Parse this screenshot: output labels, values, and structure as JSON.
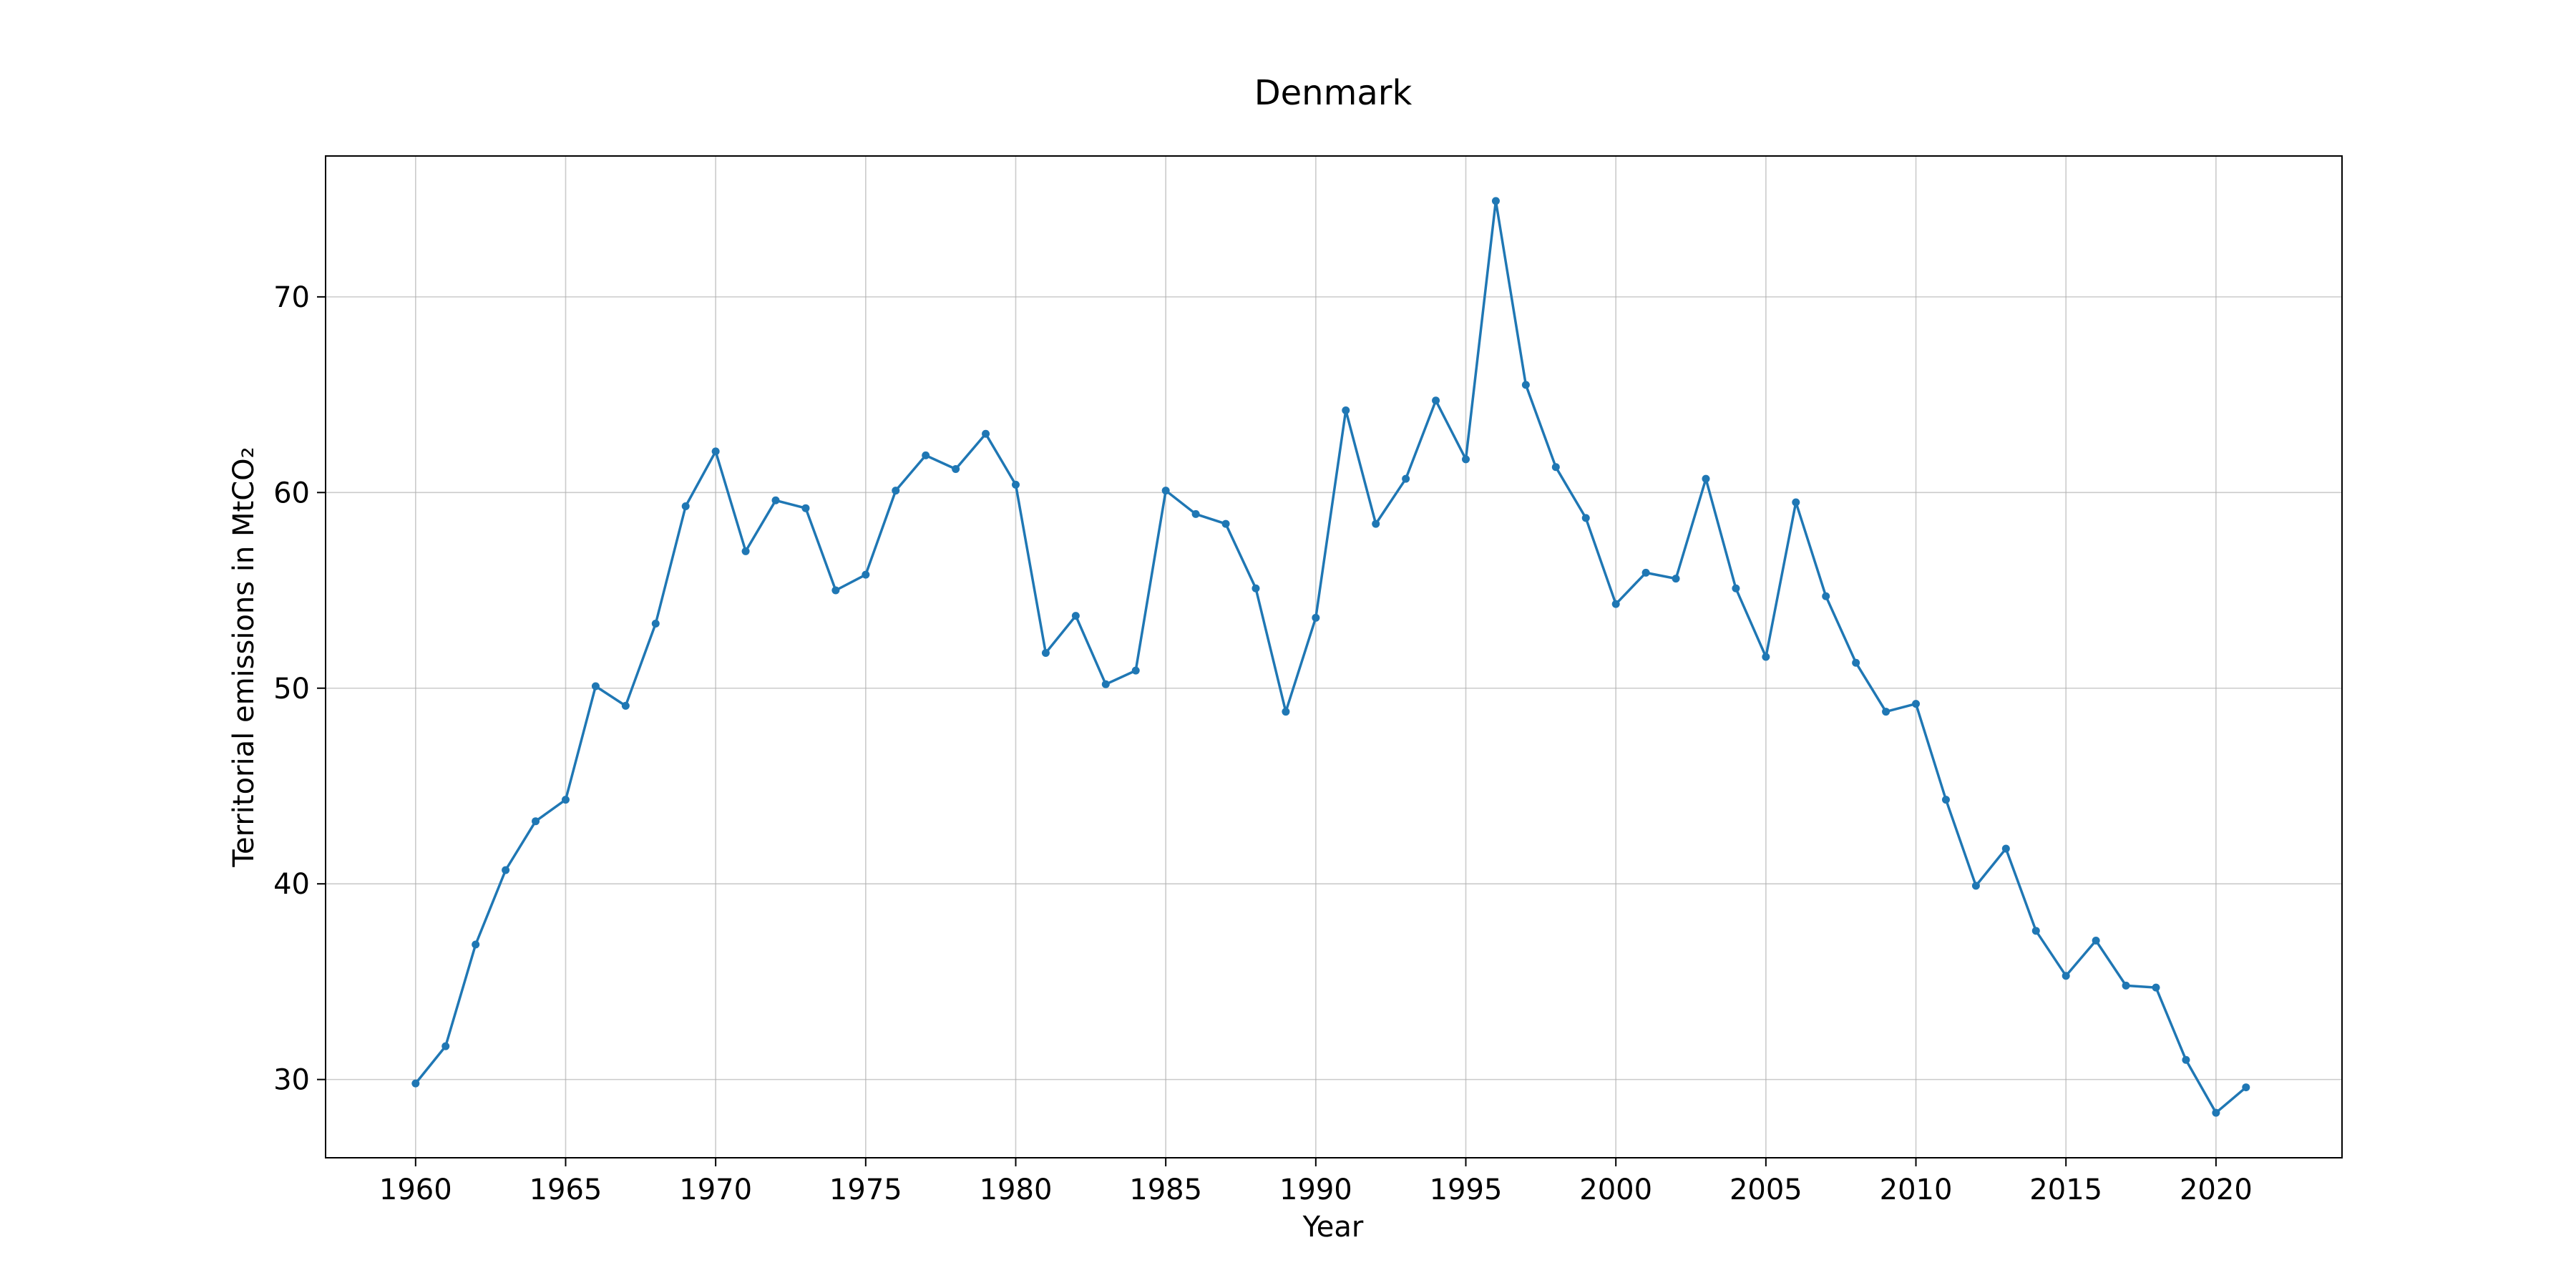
{
  "chart_data": {
    "type": "line",
    "title": "Denmark",
    "xlabel": "Year",
    "ylabel": "Territorial emissions in MtCO₂",
    "xlim": [
      1957,
      2024.2
    ],
    "ylim": [
      26,
      77.2
    ],
    "xticks": [
      1960,
      1965,
      1970,
      1975,
      1980,
      1985,
      1990,
      1995,
      2000,
      2005,
      2010,
      2015,
      2020
    ],
    "yticks": [
      30,
      40,
      50,
      60,
      70
    ],
    "grid": true,
    "color": "#1f77b4",
    "x": [
      1960,
      1961,
      1962,
      1963,
      1964,
      1965,
      1966,
      1967,
      1968,
      1969,
      1970,
      1971,
      1972,
      1973,
      1974,
      1975,
      1976,
      1977,
      1978,
      1979,
      1980,
      1981,
      1982,
      1983,
      1984,
      1985,
      1986,
      1987,
      1988,
      1989,
      1990,
      1991,
      1992,
      1993,
      1994,
      1995,
      1996,
      1997,
      1998,
      1999,
      2000,
      2001,
      2002,
      2003,
      2004,
      2005,
      2006,
      2007,
      2008,
      2009,
      2010,
      2011,
      2012,
      2013,
      2014,
      2015,
      2016,
      2017,
      2018,
      2019,
      2020,
      2021
    ],
    "y": [
      29.8,
      31.7,
      36.9,
      40.7,
      43.2,
      44.3,
      50.1,
      49.1,
      53.3,
      59.3,
      62.1,
      57.0,
      59.6,
      59.2,
      55.0,
      55.8,
      60.1,
      61.9,
      61.2,
      63.0,
      60.4,
      51.8,
      53.7,
      50.2,
      50.9,
      60.1,
      58.9,
      58.4,
      55.1,
      48.8,
      53.6,
      64.2,
      58.4,
      60.7,
      64.7,
      61.7,
      74.9,
      65.5,
      61.3,
      58.7,
      54.3,
      55.9,
      55.6,
      60.7,
      55.1,
      51.6,
      59.5,
      54.7,
      51.3,
      48.8,
      49.2,
      44.3,
      39.9,
      41.8,
      37.6,
      35.3,
      37.1,
      34.8,
      34.7,
      31.0,
      28.3,
      29.6
    ]
  }
}
